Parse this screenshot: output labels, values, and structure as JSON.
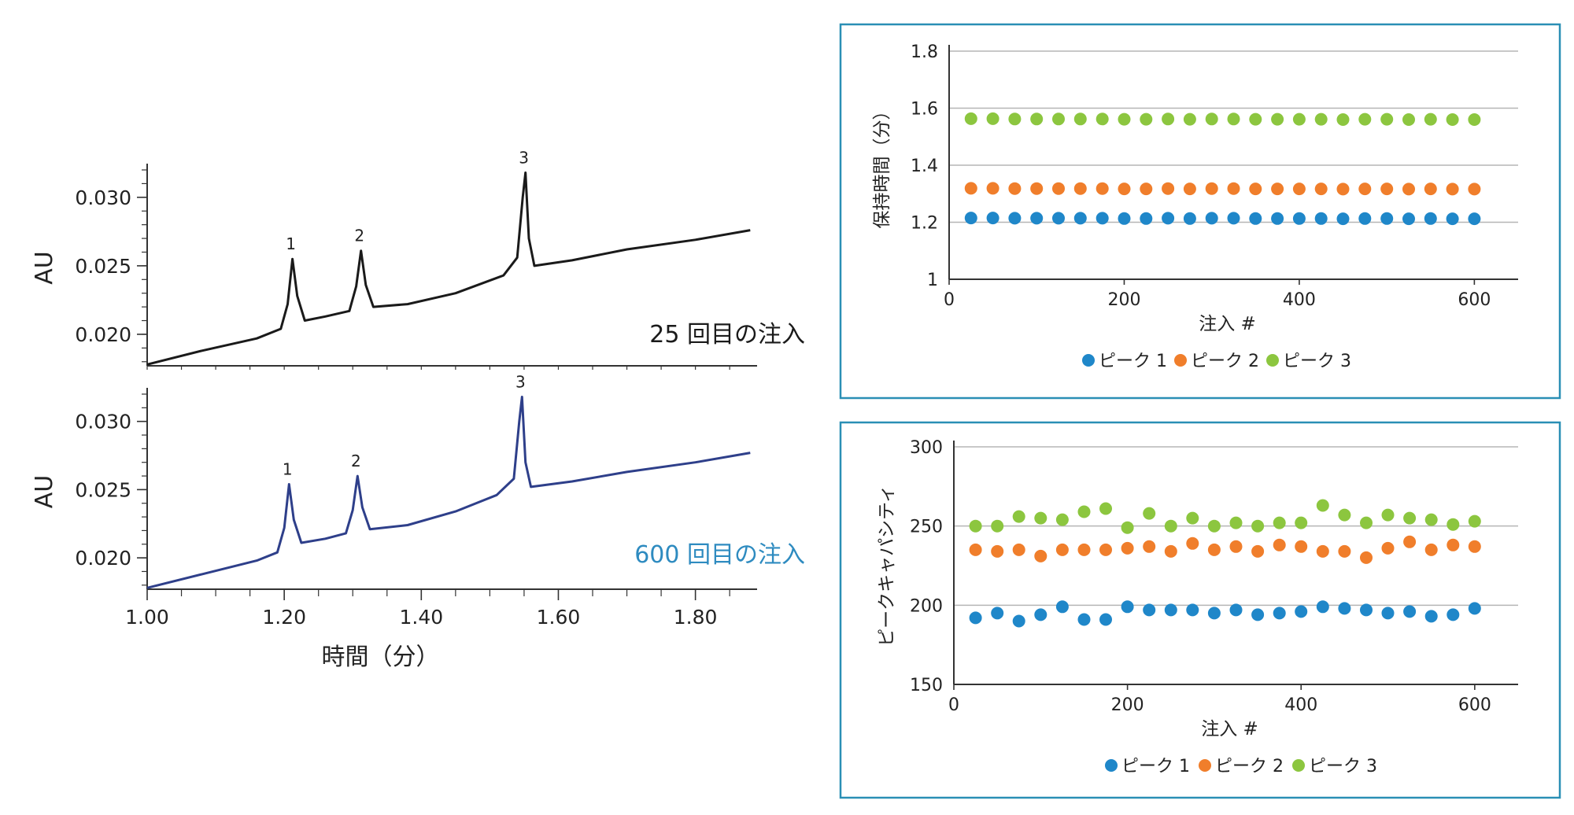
{
  "chart_data": [
    {
      "type": "line",
      "panel": "top-left chromatogram",
      "ylabel": "AU",
      "y_ticks": [
        "0.020",
        "0.025",
        "0.030"
      ],
      "ylim": [
        0.0177,
        0.032
      ],
      "annotation": "25 回目の注入",
      "line_color": "#1a1a1a",
      "annotation_color": "#1a1a1a",
      "peak_labels": [
        "1",
        "2",
        "3"
      ],
      "x": [
        1.0,
        1.08,
        1.16,
        1.195,
        1.205,
        1.212,
        1.219,
        1.23,
        1.26,
        1.295,
        1.305,
        1.312,
        1.319,
        1.33,
        1.38,
        1.45,
        1.52,
        1.54,
        1.548,
        1.552,
        1.557,
        1.565,
        1.62,
        1.7,
        1.8,
        1.88
      ],
      "y": [
        0.0178,
        0.0188,
        0.0197,
        0.0204,
        0.0222,
        0.0255,
        0.0228,
        0.021,
        0.0213,
        0.0217,
        0.0235,
        0.0261,
        0.0236,
        0.022,
        0.0222,
        0.023,
        0.0243,
        0.0256,
        0.03,
        0.0318,
        0.027,
        0.025,
        0.0254,
        0.0262,
        0.0269,
        0.0276
      ]
    },
    {
      "type": "line",
      "panel": "bottom-left chromatogram",
      "ylabel": "AU",
      "y_ticks": [
        "0.020",
        "0.025",
        "0.030"
      ],
      "ylim": [
        0.0177,
        0.032
      ],
      "xlabel": "時間（分）",
      "x_ticks": [
        "1.00",
        "1.20",
        "1.40",
        "1.60",
        "1.80"
      ],
      "xlim": [
        1.0,
        1.89
      ],
      "annotation": "600 回目の注入",
      "line_color": "#2e3f8a",
      "annotation_color": "#2e8bc0",
      "peak_labels": [
        "1",
        "2",
        "3"
      ],
      "x": [
        1.0,
        1.08,
        1.16,
        1.19,
        1.2,
        1.207,
        1.214,
        1.225,
        1.26,
        1.29,
        1.3,
        1.307,
        1.314,
        1.325,
        1.38,
        1.45,
        1.51,
        1.535,
        1.543,
        1.547,
        1.552,
        1.56,
        1.62,
        1.7,
        1.8,
        1.88
      ],
      "y": [
        0.0178,
        0.0188,
        0.0198,
        0.0204,
        0.0222,
        0.0254,
        0.0228,
        0.0211,
        0.0214,
        0.0218,
        0.0235,
        0.026,
        0.0237,
        0.0221,
        0.0224,
        0.0234,
        0.0246,
        0.0258,
        0.03,
        0.0318,
        0.027,
        0.0252,
        0.0256,
        0.0263,
        0.027,
        0.0277
      ]
    },
    {
      "type": "scatter",
      "panel": "top-right",
      "ylabel": "保持時間（分）",
      "xlabel": "注入 #",
      "x_ticks": [
        "0",
        "200",
        "400",
        "600"
      ],
      "xlim": [
        0,
        650
      ],
      "y_ticks": [
        "1",
        "1.2",
        "1.4",
        "1.6",
        "1.8"
      ],
      "ylim": [
        1,
        1.8
      ],
      "legend": [
        "ピーク 1",
        "ピーク 2",
        "ピーク 3"
      ],
      "x": [
        25,
        50,
        75,
        100,
        125,
        150,
        175,
        200,
        225,
        250,
        275,
        300,
        325,
        350,
        375,
        400,
        425,
        450,
        475,
        500,
        525,
        550,
        575,
        600
      ],
      "series": [
        {
          "name": "ピーク 1",
          "color": "#1f87c9",
          "values": [
            1.215,
            1.215,
            1.214,
            1.214,
            1.214,
            1.214,
            1.214,
            1.213,
            1.213,
            1.214,
            1.213,
            1.214,
            1.214,
            1.213,
            1.213,
            1.213,
            1.213,
            1.212,
            1.213,
            1.213,
            1.212,
            1.213,
            1.212,
            1.212
          ]
        },
        {
          "name": "ピーク 2",
          "color": "#f07e2b",
          "values": [
            1.319,
            1.319,
            1.318,
            1.318,
            1.318,
            1.318,
            1.318,
            1.317,
            1.317,
            1.318,
            1.317,
            1.318,
            1.318,
            1.317,
            1.317,
            1.317,
            1.317,
            1.316,
            1.317,
            1.317,
            1.316,
            1.317,
            1.316,
            1.316
          ]
        },
        {
          "name": "ピーク 3",
          "color": "#8cc63f",
          "values": [
            1.563,
            1.563,
            1.562,
            1.562,
            1.562,
            1.562,
            1.562,
            1.561,
            1.561,
            1.562,
            1.561,
            1.562,
            1.562,
            1.561,
            1.561,
            1.561,
            1.561,
            1.56,
            1.561,
            1.561,
            1.56,
            1.561,
            1.56,
            1.56
          ]
        }
      ]
    },
    {
      "type": "scatter",
      "panel": "bottom-right",
      "ylabel": "ピークキャパシティ",
      "xlabel": "注入 #",
      "x_ticks": [
        "0",
        "200",
        "400",
        "600"
      ],
      "xlim": [
        0,
        650
      ],
      "y_ticks": [
        "150",
        "200",
        "250",
        "300"
      ],
      "ylim": [
        150,
        300
      ],
      "legend": [
        "ピーク 1",
        "ピーク 2",
        "ピーク 3"
      ],
      "x": [
        25,
        50,
        75,
        100,
        125,
        150,
        175,
        200,
        225,
        250,
        275,
        300,
        325,
        350,
        375,
        400,
        425,
        450,
        475,
        500,
        525,
        550,
        575,
        600
      ],
      "series": [
        {
          "name": "ピーク 1",
          "color": "#1f87c9",
          "values": [
            192,
            195,
            190,
            194,
            199,
            191,
            191,
            199,
            197,
            197,
            197,
            195,
            197,
            194,
            195,
            196,
            199,
            198,
            197,
            195,
            196,
            193,
            194,
            198
          ]
        },
        {
          "name": "ピーク 2",
          "color": "#f07e2b",
          "values": [
            235,
            234,
            235,
            231,
            235,
            235,
            235,
            236,
            237,
            234,
            239,
            235,
            237,
            234,
            238,
            237,
            234,
            234,
            230,
            236,
            240,
            235,
            238,
            237
          ]
        },
        {
          "name": "ピーク 3",
          "color": "#8cc63f",
          "values": [
            250,
            250,
            256,
            255,
            254,
            259,
            261,
            249,
            258,
            250,
            255,
            250,
            252,
            250,
            252,
            252,
            263,
            257,
            252,
            257,
            255,
            254,
            251,
            253
          ]
        }
      ]
    }
  ]
}
